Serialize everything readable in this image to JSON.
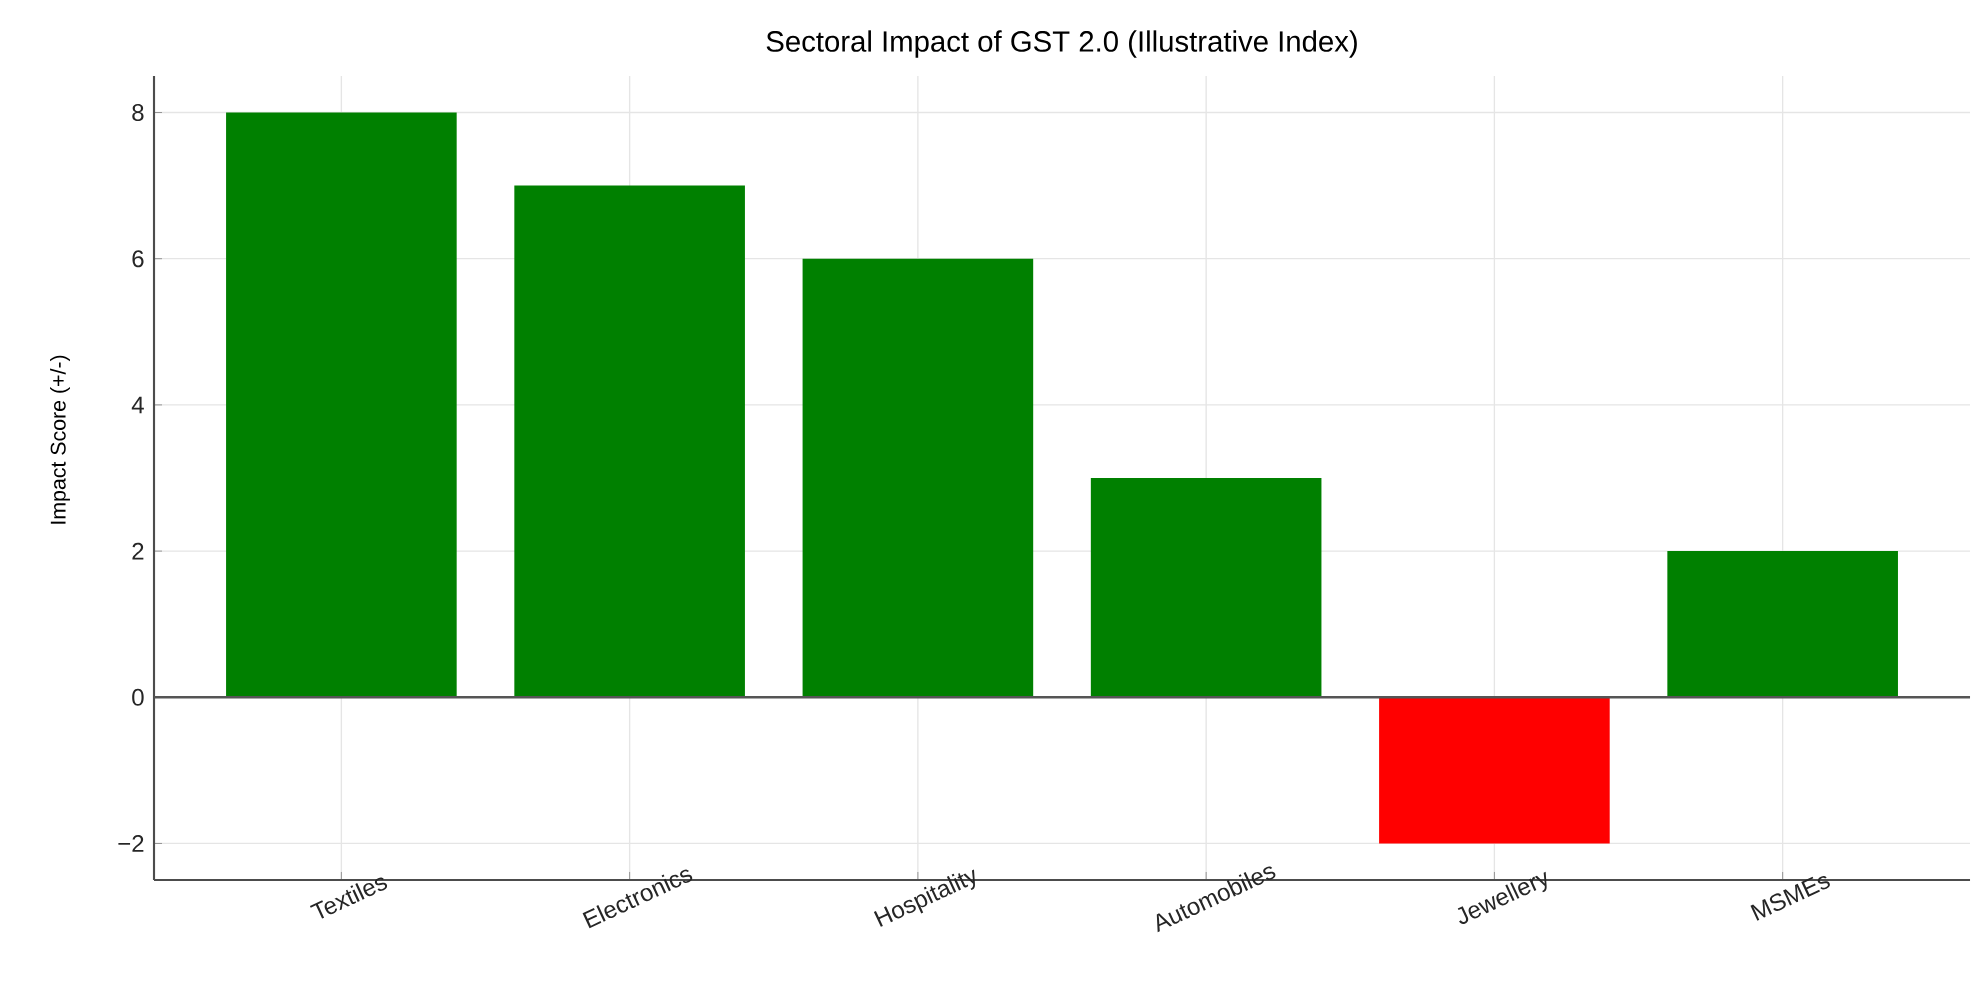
{
  "chart_data": {
    "type": "bar",
    "title": "Sectoral Impact of GST 2.0 (Illustrative Index)",
    "ylabel": "Impact Score (+/-)",
    "categories": [
      "Textiles",
      "Electronics",
      "Hospitality",
      "Automobiles",
      "Jewellery",
      "MSMEs"
    ],
    "values": [
      8,
      7,
      6,
      3,
      -2,
      2
    ],
    "colors": [
      "#008000",
      "#008000",
      "#008000",
      "#008000",
      "#ff0000",
      "#008000"
    ],
    "ylim": [
      -2.5,
      8.5
    ],
    "yticks": [
      {
        "value": -2,
        "label": "−2"
      },
      0,
      2,
      4,
      6,
      8
    ],
    "grid": true,
    "ref_lines": [
      {
        "axis": "y",
        "value": 0,
        "color": "#555555"
      }
    ]
  }
}
